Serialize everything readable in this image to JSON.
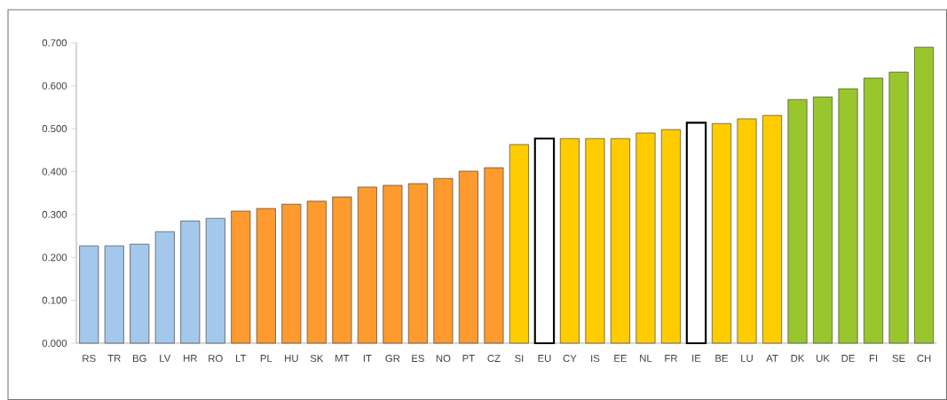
{
  "chart_data": {
    "type": "bar",
    "categories": [
      "RS",
      "TR",
      "BG",
      "LV",
      "HR",
      "RO",
      "LT",
      "PL",
      "HU",
      "SK",
      "MT",
      "IT",
      "GR",
      "ES",
      "NO",
      "PT",
      "CZ",
      "SI",
      "EU",
      "CY",
      "IS",
      "EE",
      "NL",
      "FR",
      "IE",
      "BE",
      "LU",
      "AT",
      "DK",
      "UK",
      "DE",
      "FI",
      "SE",
      "CH"
    ],
    "values": [
      0.227,
      0.227,
      0.231,
      0.26,
      0.285,
      0.291,
      0.308,
      0.314,
      0.324,
      0.331,
      0.341,
      0.364,
      0.368,
      0.372,
      0.384,
      0.401,
      0.409,
      0.463,
      0.477,
      0.477,
      0.477,
      0.477,
      0.49,
      0.498,
      0.514,
      0.512,
      0.523,
      0.531,
      0.568,
      0.574,
      0.593,
      0.618,
      0.632,
      0.69
    ],
    "colors": [
      "#a4c8ec",
      "#a4c8ec",
      "#a4c8ec",
      "#a4c8ec",
      "#a4c8ec",
      "#a4c8ec",
      "#ff9a2e",
      "#ff9a2e",
      "#ff9a2e",
      "#ff9a2e",
      "#ff9a2e",
      "#ff9a2e",
      "#ff9a2e",
      "#ff9a2e",
      "#ff9a2e",
      "#ff9a2e",
      "#ff9a2e",
      "#ffcc00",
      "#ffffff",
      "#ffcc00",
      "#ffcc00",
      "#ffcc00",
      "#ffcc00",
      "#ffcc00",
      "#ffffff",
      "#ffcc00",
      "#ffcc00",
      "#ffcc00",
      "#99c62c",
      "#99c62c",
      "#99c62c",
      "#99c62c",
      "#99c62c",
      "#99c62c"
    ],
    "ylim": [
      0,
      0.7
    ],
    "yticks": [
      {
        "value": 0,
        "label": "0.000"
      },
      {
        "value": 0.1,
        "label": "0.100"
      },
      {
        "value": 0.2,
        "label": "0.200"
      },
      {
        "value": 0.3,
        "label": "0.300"
      },
      {
        "value": 0.4,
        "label": "0.400"
      },
      {
        "value": 0.5,
        "label": "0.500"
      },
      {
        "value": 0.6,
        "label": "0.600"
      },
      {
        "value": 0.7,
        "label": "0.700"
      }
    ],
    "grid": false
  }
}
